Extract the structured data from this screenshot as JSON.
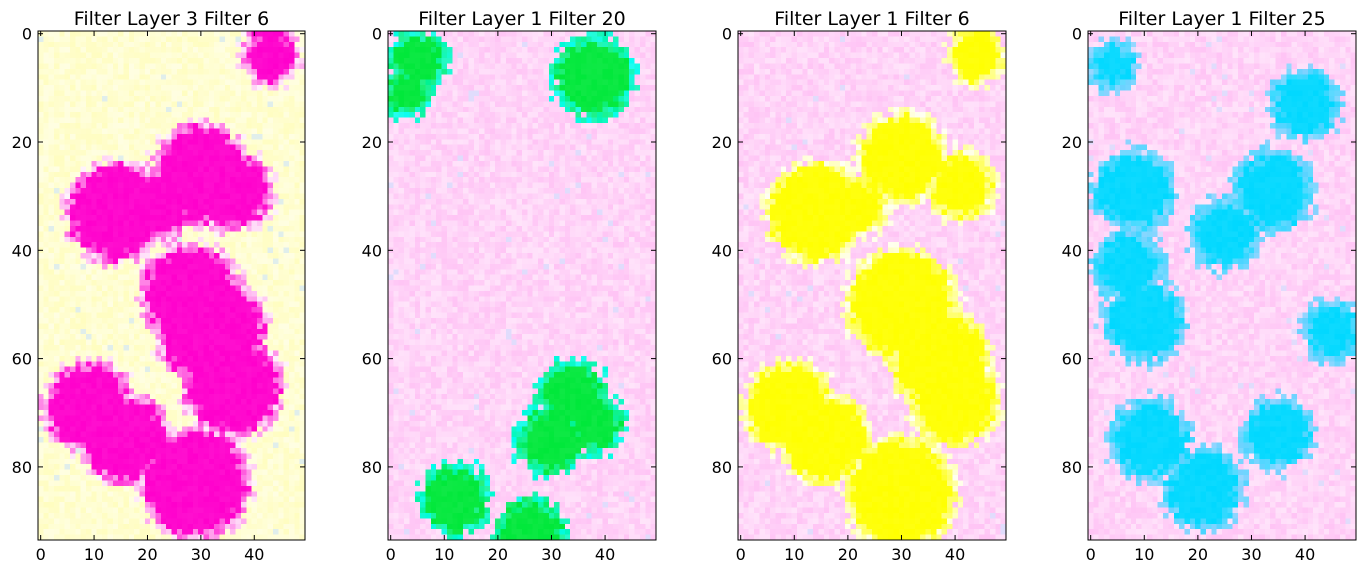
{
  "chart_data": [
    {
      "type": "heatmap",
      "title": "Filter Layer 3 Filter 6",
      "xlim": [
        0,
        49
      ],
      "ylim": [
        0,
        93
      ],
      "y_axis_inverted": true,
      "x_ticks": [
        0,
        10,
        20,
        30,
        40
      ],
      "y_ticks": [
        0,
        20,
        40,
        60,
        80
      ],
      "background_color": "#fffdc0",
      "blob_color": "#ff00cc",
      "blobs": [
        {
          "x": 43,
          "y": 4,
          "r": 5
        },
        {
          "x": 36,
          "y": 29,
          "r": 7
        },
        {
          "x": 30,
          "y": 26,
          "r": 9
        },
        {
          "x": 14,
          "y": 33,
          "r": 9
        },
        {
          "x": 22,
          "y": 32,
          "r": 6
        },
        {
          "x": 28,
          "y": 48,
          "r": 9
        },
        {
          "x": 32,
          "y": 55,
          "r": 10
        },
        {
          "x": 36,
          "y": 65,
          "r": 9
        },
        {
          "x": 9,
          "y": 69,
          "r": 8
        },
        {
          "x": 16,
          "y": 75,
          "r": 8
        },
        {
          "x": 29,
          "y": 83,
          "r": 10
        }
      ]
    },
    {
      "type": "heatmap",
      "title": "Filter Layer 1 Filter 20",
      "xlim": [
        0,
        49
      ],
      "ylim": [
        0,
        93
      ],
      "y_axis_inverted": true,
      "x_ticks": [
        0,
        10,
        20,
        30,
        40
      ],
      "y_ticks": [
        0,
        20,
        40,
        60,
        80
      ],
      "background_color": "#ffc4f5",
      "blob_color": "#00e83a",
      "halo_color": "#00ffff",
      "blobs": [
        {
          "x": 5,
          "y": 5,
          "r": 5
        },
        {
          "x": 3,
          "y": 11,
          "r": 4
        },
        {
          "x": 38,
          "y": 8,
          "r": 7
        },
        {
          "x": 34,
          "y": 67,
          "r": 6
        },
        {
          "x": 30,
          "y": 75,
          "r": 6
        },
        {
          "x": 38,
          "y": 72,
          "r": 5
        },
        {
          "x": 12,
          "y": 86,
          "r": 6
        },
        {
          "x": 26,
          "y": 92,
          "r": 6
        }
      ]
    },
    {
      "type": "heatmap",
      "title": "Filter Layer 1 Filter 6",
      "xlim": [
        0,
        49
      ],
      "ylim": [
        0,
        93
      ],
      "y_axis_inverted": true,
      "x_ticks": [
        0,
        10,
        20,
        30,
        40
      ],
      "y_ticks": [
        0,
        20,
        40,
        60,
        80
      ],
      "background_color": "#ffc4f5",
      "blob_color": "#ffff00",
      "blobs": [
        {
          "x": 44,
          "y": 4,
          "r": 5
        },
        {
          "x": 30,
          "y": 23,
          "r": 8
        },
        {
          "x": 41,
          "y": 28,
          "r": 6
        },
        {
          "x": 14,
          "y": 33,
          "r": 9
        },
        {
          "x": 22,
          "y": 32,
          "r": 5
        },
        {
          "x": 30,
          "y": 50,
          "r": 10
        },
        {
          "x": 37,
          "y": 60,
          "r": 9
        },
        {
          "x": 40,
          "y": 68,
          "r": 8
        },
        {
          "x": 9,
          "y": 69,
          "r": 8
        },
        {
          "x": 16,
          "y": 75,
          "r": 8
        },
        {
          "x": 30,
          "y": 85,
          "r": 10
        }
      ]
    },
    {
      "type": "heatmap",
      "title": "Filter Layer 1 Filter 25",
      "xlim": [
        0,
        49
      ],
      "ylim": [
        0,
        93
      ],
      "y_axis_inverted": true,
      "x_ticks": [
        0,
        10,
        20,
        30,
        40
      ],
      "y_ticks": [
        0,
        20,
        40,
        60,
        80
      ],
      "background_color": "#ffc4f5",
      "blob_color": "#00d8ff",
      "halo_color": "#8fd0ff",
      "blobs": [
        {
          "x": 4,
          "y": 6,
          "r": 4
        },
        {
          "x": 40,
          "y": 13,
          "r": 6
        },
        {
          "x": 8,
          "y": 29,
          "r": 7
        },
        {
          "x": 34,
          "y": 29,
          "r": 7
        },
        {
          "x": 25,
          "y": 37,
          "r": 6
        },
        {
          "x": 7,
          "y": 43,
          "r": 6
        },
        {
          "x": 10,
          "y": 53,
          "r": 7
        },
        {
          "x": 45,
          "y": 55,
          "r": 5
        },
        {
          "x": 11,
          "y": 75,
          "r": 7
        },
        {
          "x": 35,
          "y": 74,
          "r": 6
        },
        {
          "x": 21,
          "y": 84,
          "r": 7
        }
      ]
    }
  ]
}
